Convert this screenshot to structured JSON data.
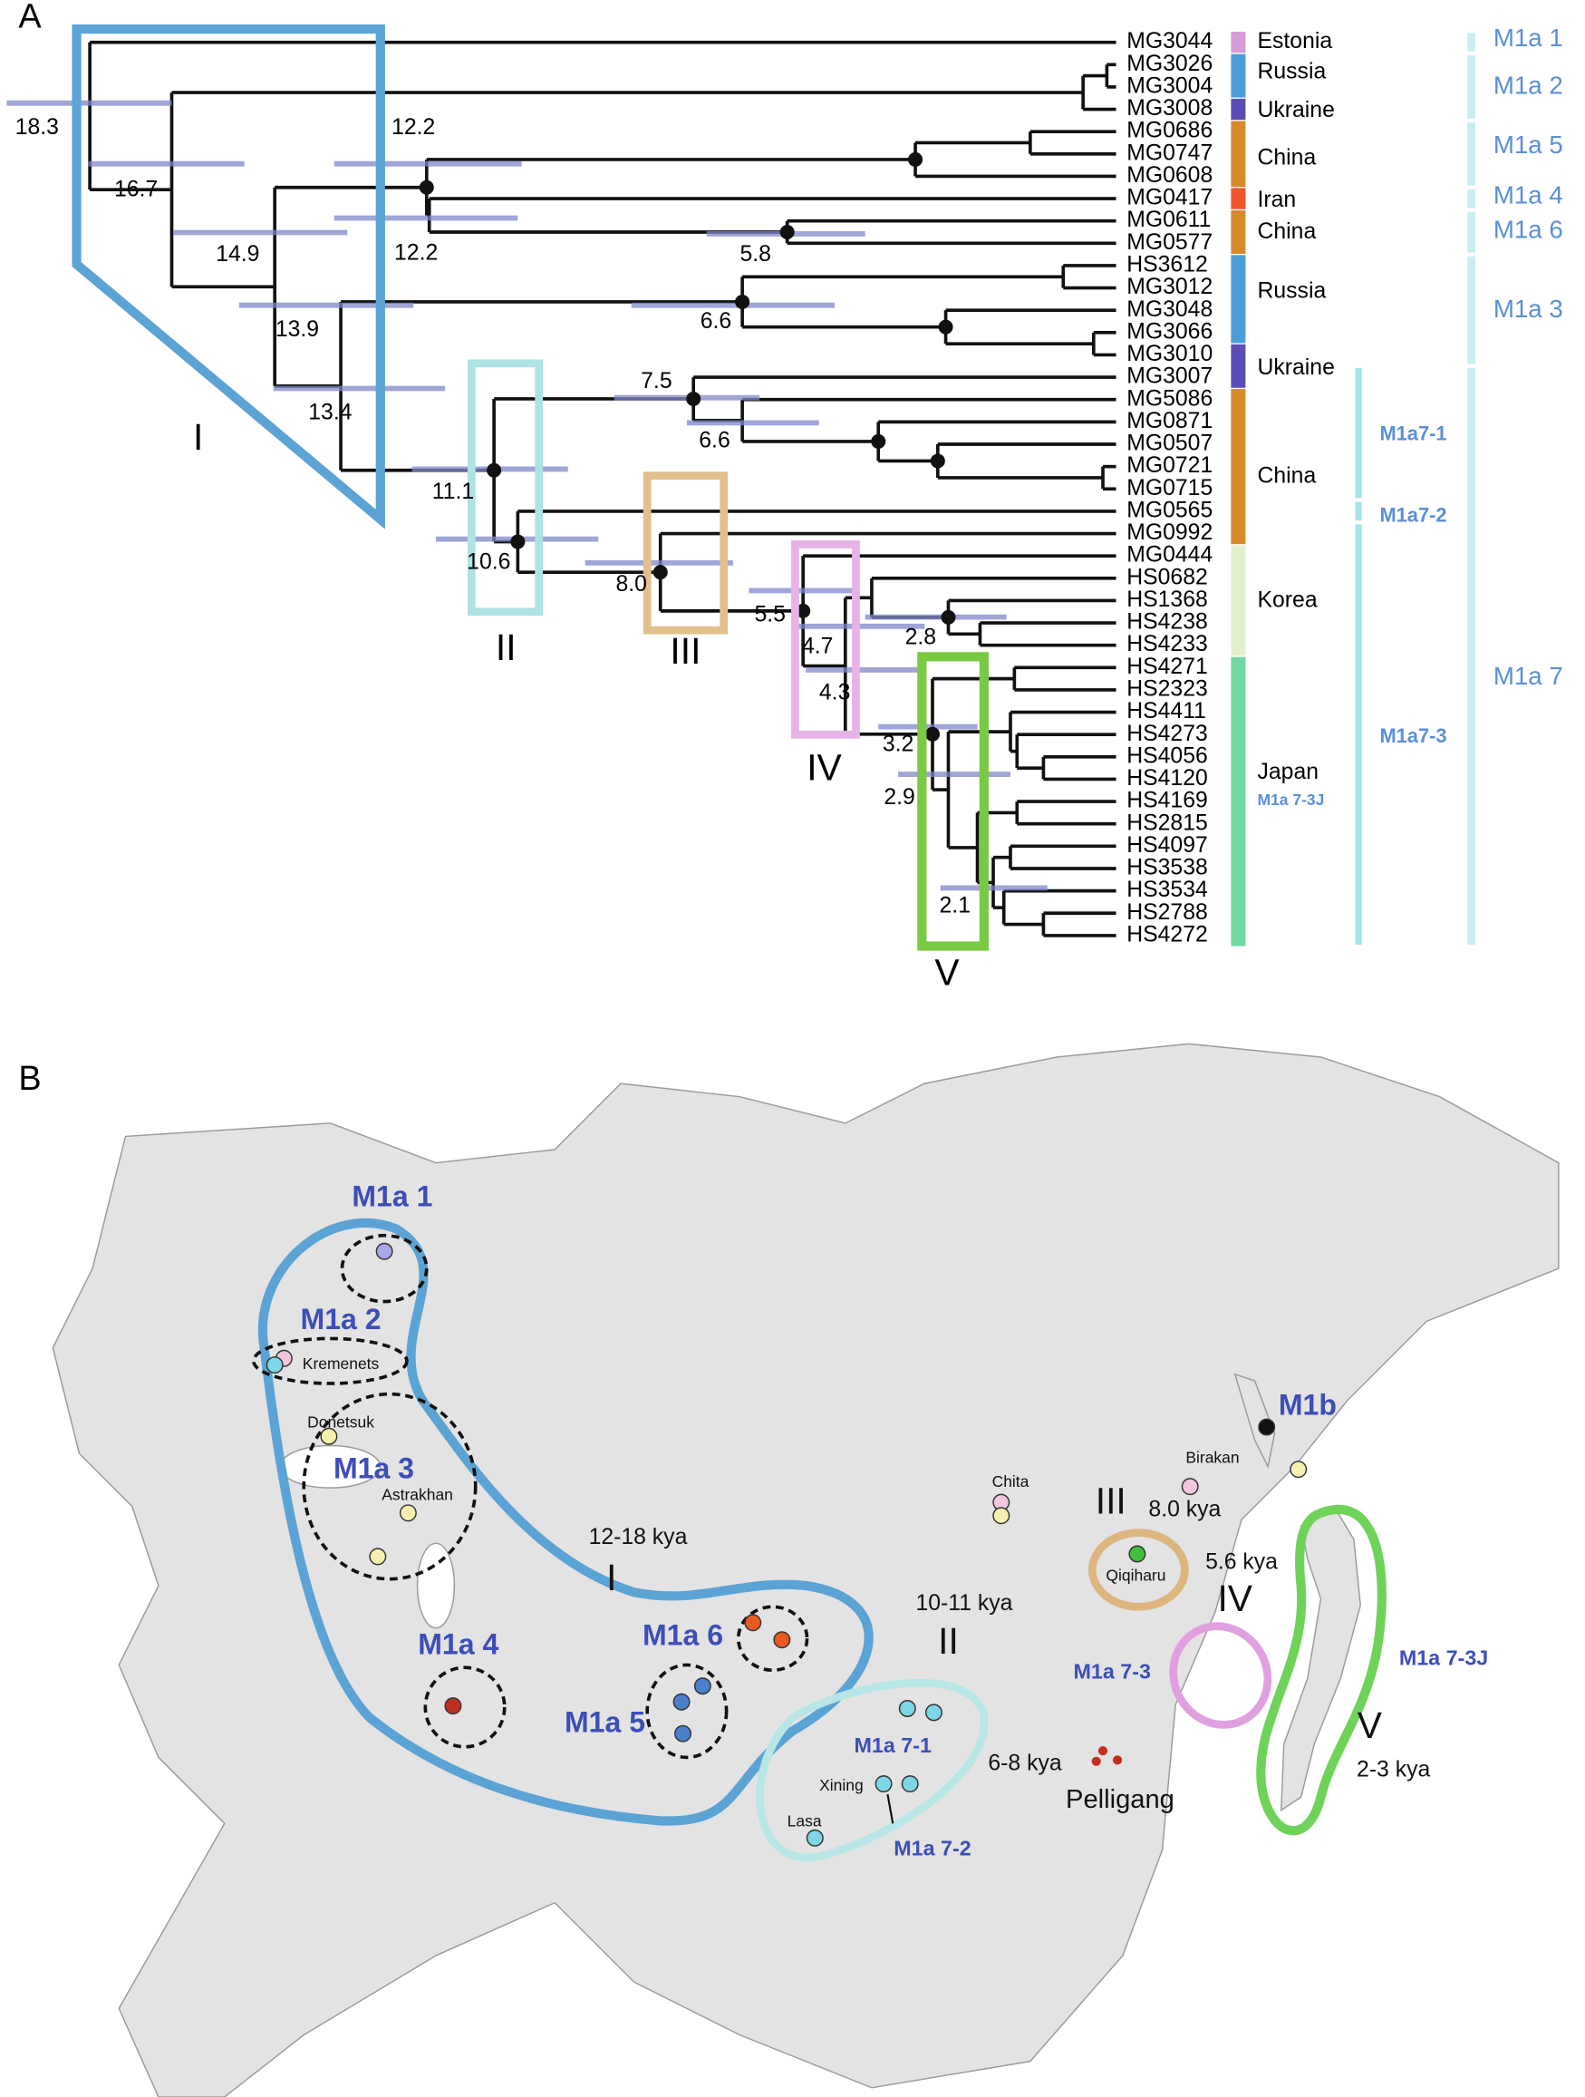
{
  "panel_a": {
    "label": "A",
    "leaves": [
      "MG3044",
      "MG3026",
      "MG3004",
      "MG3008",
      "MG0686",
      "MG0747",
      "MG0608",
      "MG0417",
      "MG0611",
      "MG0577",
      "HS3612",
      "MG3012",
      "MG3048",
      "MG3066",
      "MG3010",
      "MG3007",
      "MG5086",
      "MG0871",
      "MG0507",
      "MG0721",
      "MG0715",
      "MG0565",
      "MG0992",
      "MG0444",
      "HS0682",
      "HS1368",
      "HS4238",
      "HS4233",
      "HS4271",
      "HS2323",
      "HS4411",
      "HS4273",
      "HS4056",
      "HS4120",
      "HS4169",
      "HS2815",
      "HS4097",
      "HS3538",
      "HS3534",
      "HS2788",
      "HS4272"
    ],
    "countries": [
      "Estonia",
      "Russia",
      "Ukraine",
      "China",
      "Iran",
      "China",
      "Russia",
      "Ukraine",
      "China",
      "Korea",
      "Japan"
    ],
    "japan_sublabel": "M1a 7-3J",
    "clades": [
      "M1a 1",
      "M1a 2",
      "M1a 5",
      "M1a 4",
      "M1a 6",
      "M1a 3",
      "M1a 7"
    ],
    "subclades": [
      "M1a7-1",
      "M1a7-2",
      "M1a7-3"
    ],
    "node_ages": [
      "18.3",
      "16.7",
      "14.9",
      "12.2",
      "12.2",
      "5.8",
      "13.9",
      "6.6",
      "13.4",
      "7.5",
      "6.6",
      "11.1",
      "10.6",
      "8.0",
      "5.5",
      "4.7",
      "2.8",
      "4.3",
      "3.2",
      "2.9",
      "2.1"
    ],
    "boxes": [
      "I",
      "II",
      "III",
      "IV",
      "V"
    ]
  },
  "panel_b": {
    "label": "B",
    "labels": [
      "M1a 1",
      "M1a 2",
      "Kremenets",
      "Donetsuk",
      "M1a 3",
      "Astrakhan",
      "12-18 kya",
      "I",
      "M1a 4",
      "M1a 6",
      "M1a 5",
      "10-11 kya",
      "II",
      "M1a 7-1",
      "6-8 kya",
      "Xining",
      "Lasa",
      "M1a 7-2",
      "Pelligang",
      "Chita",
      "Birakan",
      "M1b",
      "III",
      "8.0 kya",
      "Qiqiharu",
      "5.6 kya",
      "IV",
      "M1a 7-3",
      "M1a 7-3J",
      "V",
      "2-3 kya"
    ]
  }
}
